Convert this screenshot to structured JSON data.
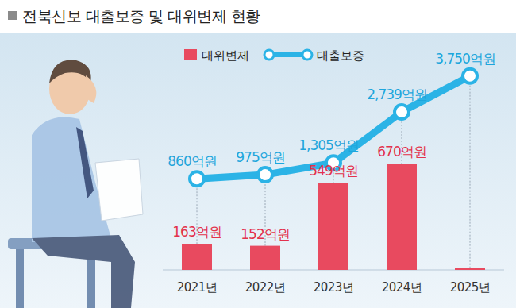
{
  "chart_data": {
    "type": "bar",
    "title": "전북신보 대출보증 및 대위변제 현황",
    "categories": [
      "2021년",
      "2022년",
      "2023년",
      "2024년",
      "2025년"
    ],
    "series": [
      {
        "name": "대위변제",
        "type": "bar",
        "color": "#e84a5f",
        "values": [
          163,
          152,
          549,
          670,
          15
        ],
        "value_labels": [
          "163억원",
          "152억원",
          "549억원",
          "670억원",
          null
        ]
      },
      {
        "name": "대출보증",
        "type": "line",
        "axis": "y2",
        "color": "#2bb3e6",
        "marker": "circle",
        "values": [
          860,
          975,
          1305,
          2739,
          3750
        ],
        "value_labels": [
          "860억원",
          "975억원",
          "1,305억원",
          "2,739억원",
          "3,750억원"
        ]
      }
    ],
    "ylim": [
      0,
      1300
    ],
    "yticks": [],
    "y2lim": [
      -1700,
      4100
    ],
    "y2ticks": [],
    "tick_labels": "x",
    "data_labels": true,
    "grid": false,
    "legend": "top"
  }
}
